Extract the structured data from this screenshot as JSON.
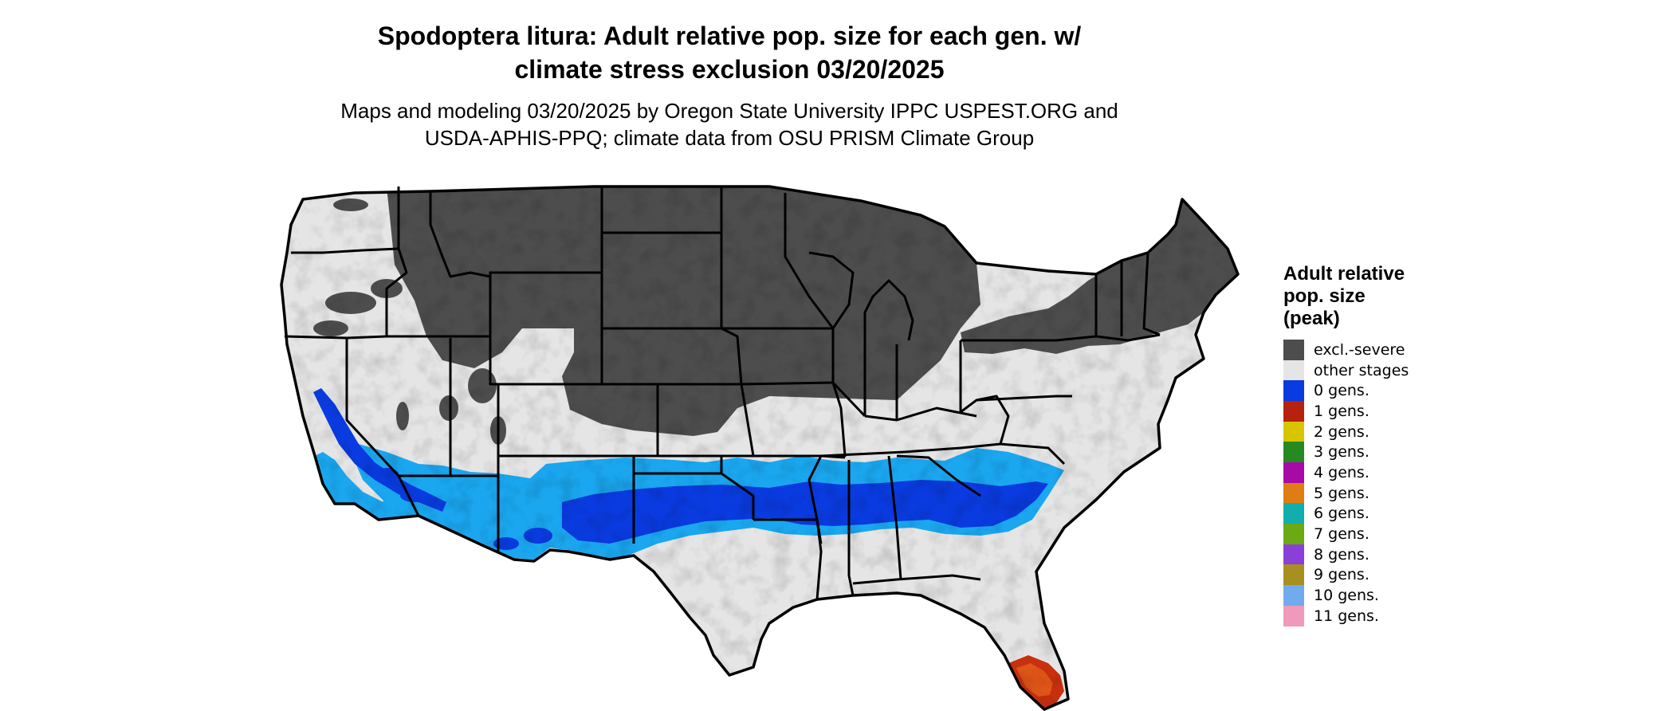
{
  "title": {
    "line1": "Spodoptera litura: Adult relative pop. size for each gen. w/",
    "line2": "climate stress exclusion 03/20/2025"
  },
  "subtitle": {
    "line1": "Maps and modeling 03/20/2025 by Oregon State University IPPC USPEST.ORG and",
    "line2": "USDA-APHIS-PPQ; climate data from OSU PRISM Climate Group"
  },
  "map": {
    "region": "Contiguous United States",
    "colors": {
      "land": "#e5e5e5",
      "excluded": "#4d4d4d",
      "border": "#000000"
    }
  },
  "legend": {
    "title_line1": "Adult relative",
    "title_line2": "pop. size",
    "title_line3": "(peak)",
    "items": [
      {
        "label": "excl.-severe",
        "color": "#4d4d4d"
      },
      {
        "label": "other stages",
        "color": "#e5e5e5"
      },
      {
        "label": "0 gens.",
        "color": "#0a3be0"
      },
      {
        "label": "1 gens.",
        "color": "#b5230e"
      },
      {
        "label": "2 gens.",
        "color": "#d8c500"
      },
      {
        "label": "3 gens.",
        "color": "#268a22"
      },
      {
        "label": "4 gens.",
        "color": "#a80aa8"
      },
      {
        "label": "5 gens.",
        "color": "#e07d12"
      },
      {
        "label": "6 gens.",
        "color": "#12adad"
      },
      {
        "label": "7 gens.",
        "color": "#6aaa12"
      },
      {
        "label": "8 gens.",
        "color": "#8a3fd8"
      },
      {
        "label": "9 gens.",
        "color": "#a89020"
      },
      {
        "label": "10 gens.",
        "color": "#72aaf0"
      },
      {
        "label": "11 gens.",
        "color": "#f099bb"
      }
    ]
  }
}
